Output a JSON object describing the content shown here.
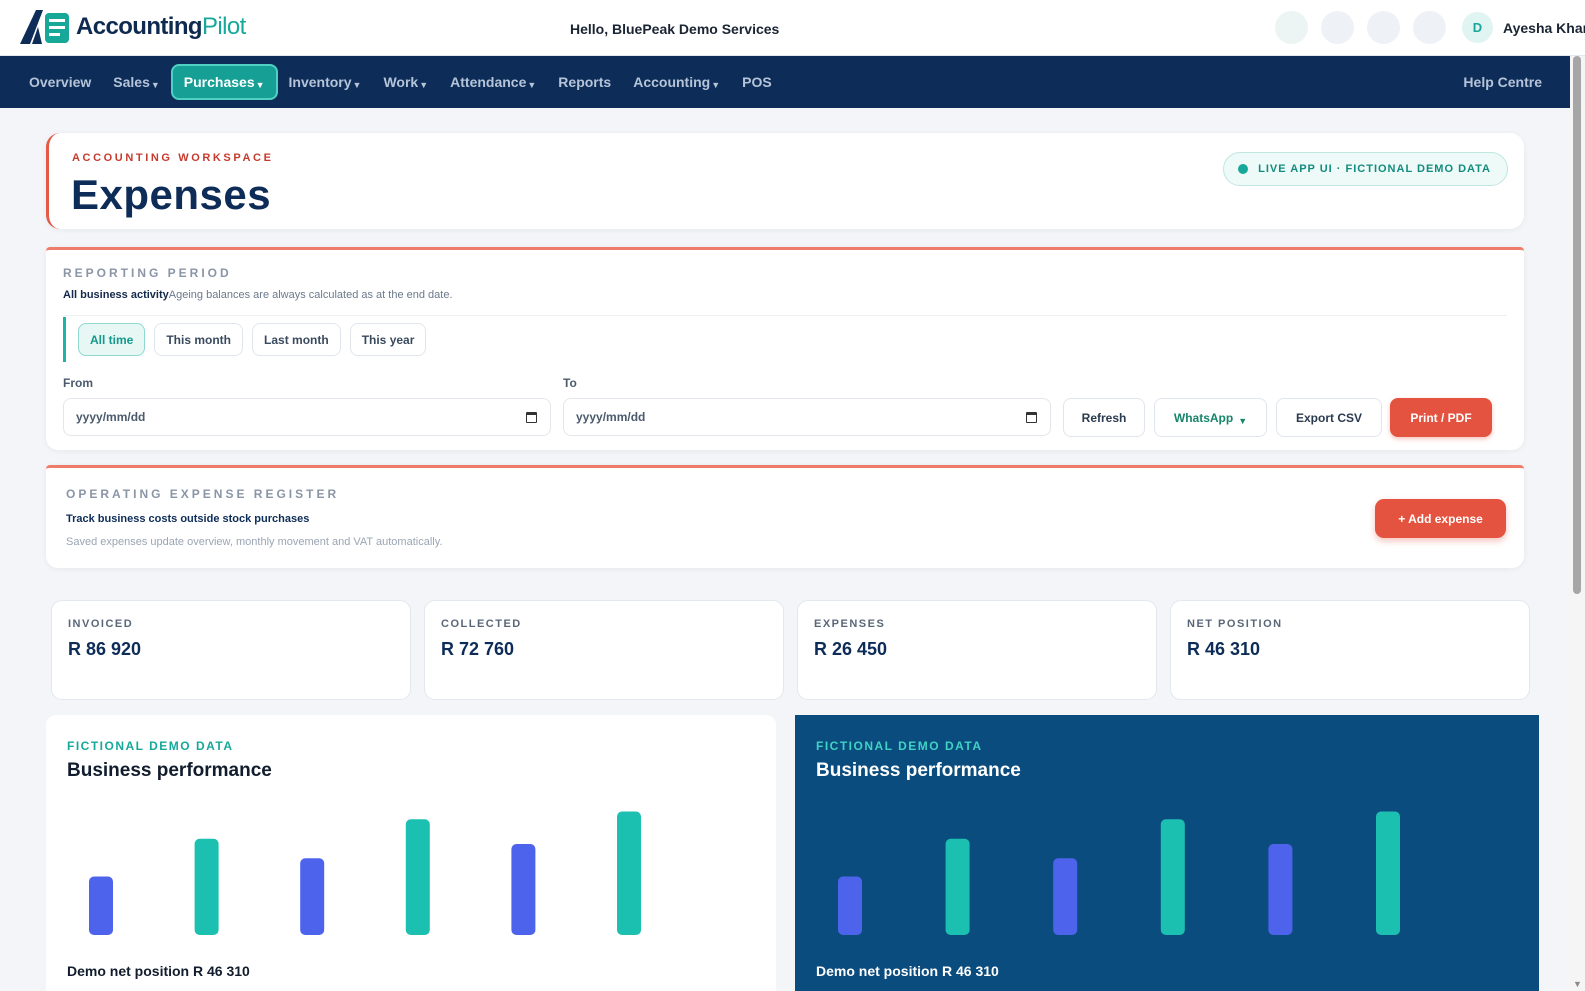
{
  "header": {
    "logo_main": "Accounting",
    "logo_accent": "Pilot",
    "greeting": "Hello, BluePeak Demo Services",
    "user_initial": "D",
    "user_name": "Ayesha Khan"
  },
  "nav": {
    "items": [
      {
        "label": "Overview"
      },
      {
        "label": "Sales",
        "dropdown": true
      },
      {
        "label": "Purchases",
        "dropdown": true,
        "active": true
      },
      {
        "label": "Inventory",
        "dropdown": true
      },
      {
        "label": "Work",
        "dropdown": true
      },
      {
        "label": "Attendance",
        "dropdown": true
      },
      {
        "label": "Reports"
      },
      {
        "label": "Accounting",
        "dropdown": true
      },
      {
        "label": "POS"
      }
    ],
    "help": "Help Centre"
  },
  "title_card": {
    "eyebrow": "ACCOUNTING WORKSPACE",
    "title": "Expenses",
    "badge": "LIVE APP UI · FICTIONAL DEMO DATA"
  },
  "period": {
    "label": "REPORTING PERIOD",
    "desc_strong": "All business activity",
    "desc": "Ageing balances are always calculated as at the end date.",
    "chips": [
      "All time",
      "This month",
      "Last month",
      "This year"
    ],
    "active_chip": "All time",
    "from_label": "From",
    "to_label": "To",
    "from_placeholder": "yyyy/mm/dd",
    "to_placeholder": "yyyy/mm/dd",
    "refresh": "Refresh",
    "whatsapp": "WhatsApp",
    "export": "Export CSV",
    "print": "Print / PDF"
  },
  "register": {
    "label": "OPERATING EXPENSE REGISTER",
    "title": "Track business costs outside stock purchases",
    "subtitle": "Saved expenses update overview, monthly movement and VAT automatically.",
    "add_button": "+ Add expense"
  },
  "kpis": [
    {
      "label": "INVOICED",
      "value": "R 86 920"
    },
    {
      "label": "COLLECTED",
      "value": "R 72 760"
    },
    {
      "label": "EXPENSES",
      "value": "R 26 450"
    },
    {
      "label": "NET POSITION",
      "value": "R 46 310"
    }
  ],
  "charts": [
    {
      "eyebrow": "FICTIONAL DEMO DATA",
      "title": "Business performance",
      "footer": "Demo net position R 46 310"
    },
    {
      "eyebrow": "FICTIONAL DEMO DATA",
      "title": "Business performance",
      "footer": "Demo net position R 46 310"
    }
  ],
  "colors": {
    "brand_navy": "#0d2c57",
    "teal": "#1cc0b0",
    "indigo": "#4d63ec",
    "accent_red": "#e4533f",
    "dark_panel": "#0b4c7f"
  },
  "chart_data": [
    {
      "type": "bar",
      "title": "Business performance",
      "series": [
        {
          "values": [
            45,
            74,
            59,
            89,
            70,
            95
          ]
        }
      ],
      "bar_colors": [
        "#4d63ec",
        "#1cc0b0",
        "#4d63ec",
        "#1cc0b0",
        "#4d63ec",
        "#1cc0b0"
      ],
      "ylim": [
        0,
        100
      ]
    },
    {
      "type": "bar",
      "title": "Business performance",
      "series": [
        {
          "values": [
            45,
            74,
            59,
            89,
            70,
            95
          ]
        }
      ],
      "bar_colors": [
        "#4d63ec",
        "#1cc0b0",
        "#4d63ec",
        "#1cc0b0",
        "#4d63ec",
        "#1cc0b0"
      ],
      "ylim": [
        0,
        100
      ]
    }
  ]
}
